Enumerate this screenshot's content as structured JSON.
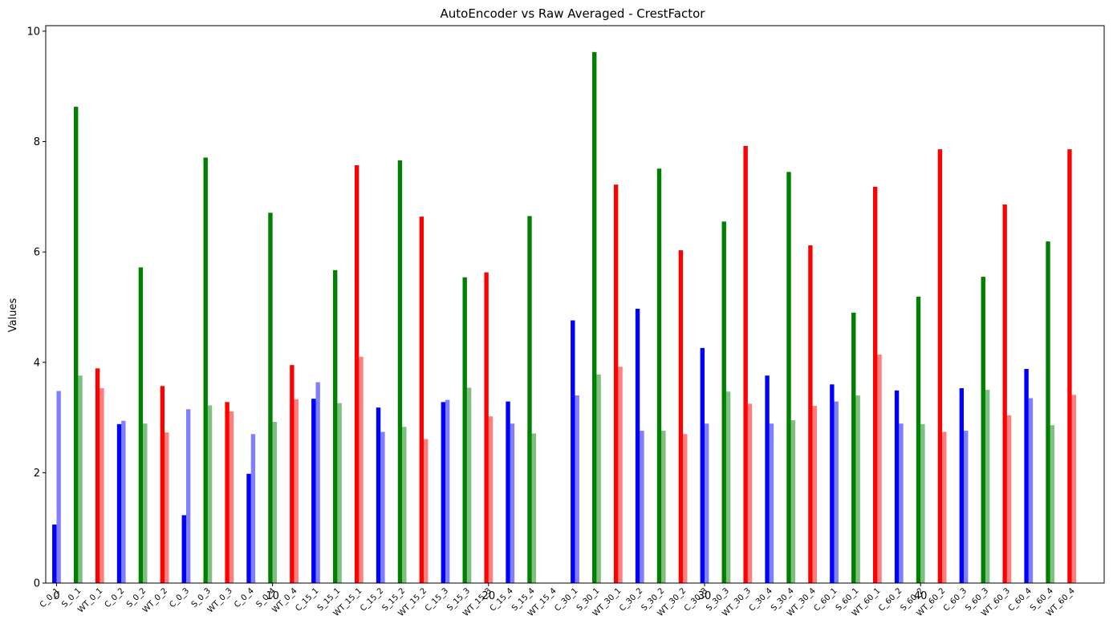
{
  "chart_data": {
    "type": "bar",
    "title": "AutoEncoder vs Raw Averaged - CrestFactor",
    "xlabel": "",
    "ylabel": "Values",
    "ylim": [
      0,
      10.1
    ],
    "xlim": [
      -0.5,
      48.5
    ],
    "yticks": [
      0,
      2,
      4,
      6,
      8,
      10
    ],
    "xticks": [
      0,
      10,
      20,
      30,
      40
    ],
    "grid": false,
    "categories": [
      "C_0_1",
      "S_0_1",
      "WT_0_1",
      "C_0_2",
      "S_0_2",
      "WT_0_2",
      "C_0_3",
      "S_0_3",
      "WT_0_3",
      "C_0_4",
      "S_0_4",
      "WT_0_4",
      "C_15_1",
      "S_15_1",
      "WT_15_1",
      "C_15_2",
      "S_15_2",
      "WT_15_2",
      "C_15_3",
      "S_15_3",
      "WT_15_3",
      "C_15_4",
      "S_15_4",
      "WT_15_4",
      "C_30_1",
      "S_30_1",
      "WT_30_1",
      "C_30_2",
      "S_30_2",
      "WT_30_2",
      "C_30_3",
      "S_30_3",
      "WT_30_3",
      "C_30_4",
      "S_30_4",
      "WT_30_4",
      "C_60_1",
      "S_60_1",
      "WT_60_1",
      "C_60_2",
      "S_60_2",
      "WT_60_2",
      "C_60_3",
      "S_60_3",
      "WT_60_3",
      "C_60_4",
      "S_60_4",
      "WT_60_4"
    ],
    "category_colors": [
      "#0000ff",
      "#008000",
      "#ff0000"
    ],
    "series": [
      {
        "opacity": 1.0,
        "values": [
          1.06,
          8.63,
          3.89,
          2.88,
          5.72,
          3.57,
          1.23,
          7.71,
          3.28,
          1.98,
          6.71,
          3.95,
          3.34,
          5.67,
          7.57,
          3.18,
          7.66,
          6.64,
          3.28,
          5.54,
          5.63,
          3.29,
          6.65,
          0,
          4.76,
          9.62,
          7.22,
          4.97,
          7.51,
          6.03,
          4.26,
          6.55,
          7.92,
          3.76,
          7.45,
          6.12,
          3.6,
          4.9,
          7.18,
          3.49,
          5.19,
          7.86,
          3.53,
          5.55,
          6.86,
          3.88,
          6.19,
          7.86
        ]
      },
      {
        "opacity": 0.5,
        "values": [
          3.48,
          3.76,
          3.53,
          2.94,
          2.89,
          2.73,
          3.15,
          3.22,
          3.11,
          2.7,
          2.92,
          3.33,
          3.64,
          3.26,
          4.1,
          2.74,
          2.83,
          2.61,
          3.32,
          3.54,
          3.02,
          2.89,
          2.71,
          0,
          3.4,
          3.78,
          3.92,
          2.76,
          2.76,
          2.7,
          2.89,
          3.47,
          3.25,
          2.89,
          2.95,
          3.21,
          3.29,
          3.4,
          4.14,
          2.89,
          2.88,
          2.74,
          2.76,
          3.5,
          3.04,
          3.35,
          2.86,
          3.41
        ]
      }
    ]
  }
}
